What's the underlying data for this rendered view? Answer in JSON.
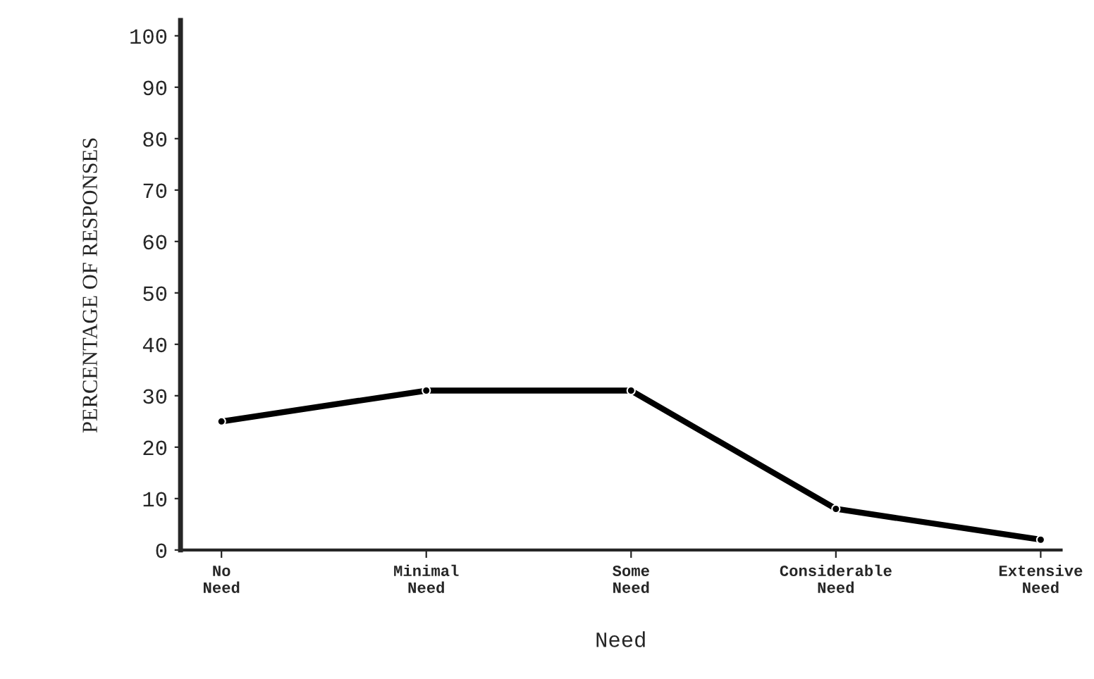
{
  "chart_data": {
    "type": "line",
    "xlabel": "Need",
    "ylabel": "PERCENTAGE OF RESPONSES",
    "categories": [
      "No\nNeed",
      "Minimal\nNeed",
      "Some\nNeed",
      "Considerable\nNeed",
      "Extensive\nNeed"
    ],
    "series": [
      {
        "color": "#000000",
        "values": [
          25,
          31,
          31,
          8,
          2
        ]
      }
    ],
    "ylim": [
      0,
      103
    ],
    "yticks": [
      0,
      10,
      20,
      30,
      40,
      50,
      60,
      70,
      80,
      90,
      100
    ],
    "grid": false,
    "legend": false,
    "marker": "circle",
    "line_style": "solid"
  }
}
